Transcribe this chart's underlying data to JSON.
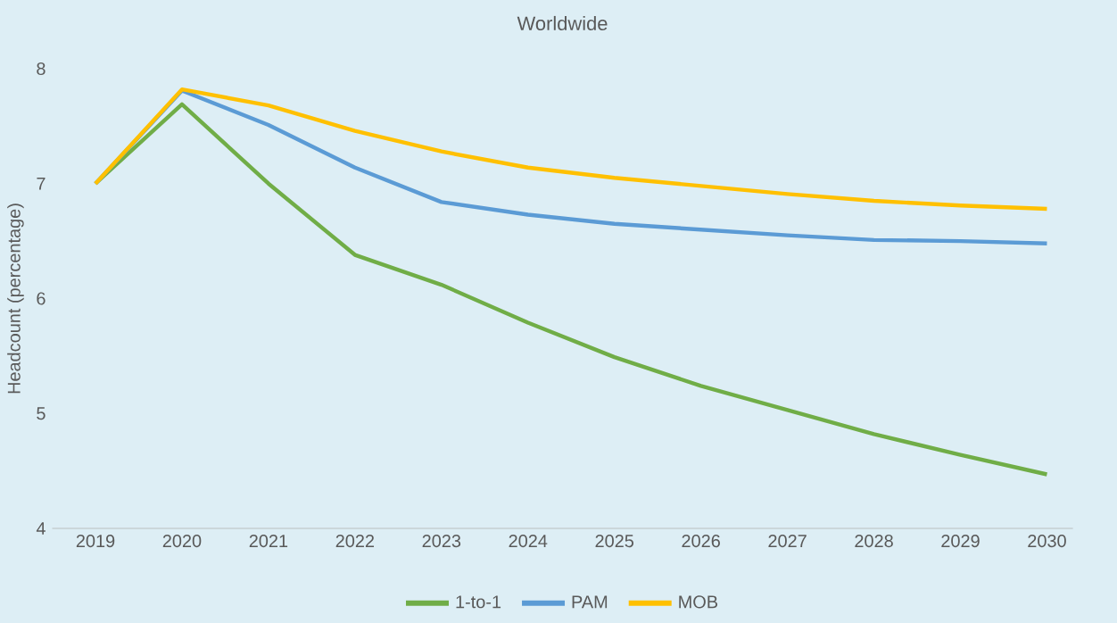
{
  "chart_data": {
    "type": "line",
    "title": "Worldwide",
    "ylabel": "Headcount (percentage)",
    "categories": [
      "2019",
      "2020",
      "2021",
      "2022",
      "2023",
      "2024",
      "2025",
      "2026",
      "2027",
      "2028",
      "2029",
      "2030"
    ],
    "series": [
      {
        "name": "1-to-1",
        "color": "#70ad47",
        "values": [
          7.0,
          7.69,
          7.0,
          6.38,
          6.12,
          5.79,
          5.49,
          5.24,
          5.03,
          4.82,
          4.64,
          4.47
        ]
      },
      {
        "name": "PAM",
        "color": "#5b9bd5",
        "values": [
          7.0,
          7.81,
          7.51,
          7.14,
          6.84,
          6.73,
          6.65,
          6.6,
          6.55,
          6.51,
          6.5,
          6.48
        ]
      },
      {
        "name": "MOB",
        "color": "#ffc000",
        "values": [
          7.0,
          7.82,
          7.68,
          7.46,
          7.28,
          7.14,
          7.05,
          6.98,
          6.91,
          6.85,
          6.81,
          6.78
        ]
      }
    ],
    "ylim": [
      4,
      8
    ],
    "yticks": [
      4,
      5,
      6,
      7,
      8
    ],
    "legend": "bottom"
  }
}
